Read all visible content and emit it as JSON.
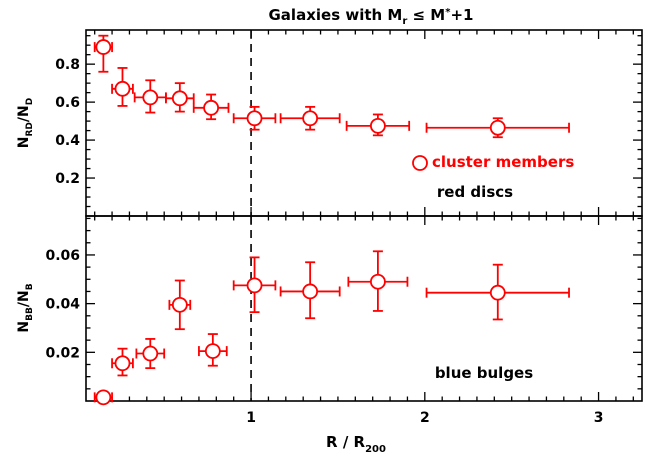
{
  "chart_data": {
    "type": "scatter",
    "title": "Galaxies with M_r ≤ M*+1",
    "title_parts": {
      "prefix": "Galaxies with M",
      "sub": "r",
      "rel": " ≤ M",
      "sup": "*",
      "suffix": "+1"
    },
    "xlabel": "R / R_200",
    "xlabel_parts": {
      "main": "R / R",
      "sub": "200"
    },
    "xlim": [
      0.05,
      3.25
    ],
    "x_ticks": [
      1,
      2,
      3
    ],
    "x_tick_labels": [
      "1",
      "2",
      "3"
    ],
    "vline_x": 1,
    "color": "#ff0000",
    "panels": [
      {
        "id": "top",
        "ylabel": "N_RD/N_D",
        "ylabel_parts": {
          "n1": "N",
          "s1": "RD",
          "mid": "/N",
          "s2": "D"
        },
        "ylim": [
          0.0,
          0.98
        ],
        "y_ticks": [
          0.2,
          0.4,
          0.6,
          0.8
        ],
        "y_tick_labels": [
          "0.2",
          "0.4",
          "0.6",
          "0.8"
        ],
        "annotation": "red discs",
        "legend_label": "cluster members",
        "legend_placement": "lower-right",
        "points": [
          {
            "x": 0.15,
            "y": 0.89,
            "xerr": 0.05,
            "yerr_lo": 0.13,
            "yerr_hi": 0.06
          },
          {
            "x": 0.26,
            "y": 0.67,
            "xerr": 0.06,
            "yerr_lo": 0.09,
            "yerr_hi": 0.11
          },
          {
            "x": 0.42,
            "y": 0.625,
            "xerr": 0.09,
            "yerr_lo": 0.08,
            "yerr_hi": 0.09
          },
          {
            "x": 0.59,
            "y": 0.62,
            "xerr": 0.08,
            "yerr_lo": 0.07,
            "yerr_hi": 0.08
          },
          {
            "x": 0.77,
            "y": 0.57,
            "xerr": 0.1,
            "yerr_lo": 0.06,
            "yerr_hi": 0.07
          },
          {
            "x": 1.02,
            "y": 0.515,
            "xerr": 0.12,
            "yerr_lo": 0.06,
            "yerr_hi": 0.06
          },
          {
            "x": 1.34,
            "y": 0.515,
            "xerr": 0.17,
            "yerr_lo": 0.06,
            "yerr_hi": 0.06
          },
          {
            "x": 1.73,
            "y": 0.475,
            "xerr": 0.18,
            "yerr_lo": 0.05,
            "yerr_hi": 0.06
          },
          {
            "x": 2.42,
            "y": 0.465,
            "xerr": 0.41,
            "yerr_lo": 0.05,
            "yerr_hi": 0.05
          }
        ]
      },
      {
        "id": "bottom",
        "ylabel": "N_BB/N_B",
        "ylabel_parts": {
          "n1": "N",
          "s1": "BB",
          "mid": "/N",
          "s2": "B"
        },
        "ylim": [
          0.0,
          0.076
        ],
        "y_ticks": [
          0.02,
          0.04,
          0.06
        ],
        "y_tick_labels": [
          "0.02",
          "0.04",
          "0.06"
        ],
        "annotation": "blue bulges",
        "points": [
          {
            "x": 0.15,
            "y": 0.0015,
            "xerr": 0.05,
            "yerr_lo": 0.0015,
            "yerr_hi": 0.002
          },
          {
            "x": 0.26,
            "y": 0.0155,
            "xerr": 0.06,
            "yerr_lo": 0.005,
            "yerr_hi": 0.006
          },
          {
            "x": 0.42,
            "y": 0.0195,
            "xerr": 0.08,
            "yerr_lo": 0.006,
            "yerr_hi": 0.006
          },
          {
            "x": 0.59,
            "y": 0.0395,
            "xerr": 0.06,
            "yerr_lo": 0.01,
            "yerr_hi": 0.01
          },
          {
            "x": 0.78,
            "y": 0.0205,
            "xerr": 0.08,
            "yerr_lo": 0.006,
            "yerr_hi": 0.007
          },
          {
            "x": 1.02,
            "y": 0.0475,
            "xerr": 0.12,
            "yerr_lo": 0.011,
            "yerr_hi": 0.0115
          },
          {
            "x": 1.34,
            "y": 0.045,
            "xerr": 0.17,
            "yerr_lo": 0.011,
            "yerr_hi": 0.012
          },
          {
            "x": 1.73,
            "y": 0.049,
            "xerr": 0.17,
            "yerr_lo": 0.012,
            "yerr_hi": 0.0125
          },
          {
            "x": 2.42,
            "y": 0.0445,
            "xerr": 0.41,
            "yerr_lo": 0.011,
            "yerr_hi": 0.0115
          }
        ]
      }
    ]
  }
}
